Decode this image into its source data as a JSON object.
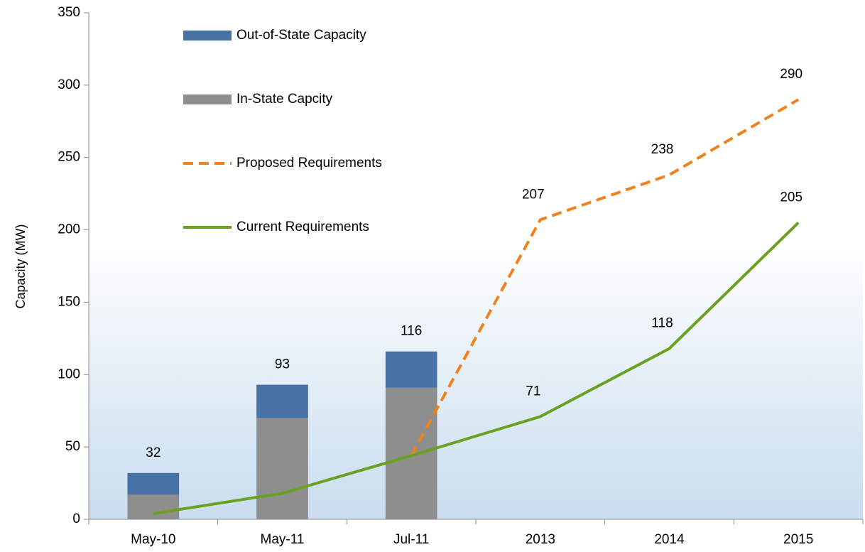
{
  "chart_data": {
    "type": "bar",
    "stacked": true,
    "ylabel": "Capacity (MW)",
    "categories": [
      "May-10",
      "May-11",
      "Jul-11",
      "2013",
      "2014",
      "2015"
    ],
    "series": [
      {
        "name": "Out-of-State Capacity",
        "type": "bar",
        "color": "#4672a5",
        "values": [
          15,
          23,
          25,
          null,
          null,
          null
        ]
      },
      {
        "name": "In-State Capcity",
        "type": "bar",
        "color": "#8e8e8e",
        "values": [
          17,
          70,
          91,
          null,
          null,
          null
        ]
      },
      {
        "name": "Proposed Requirements",
        "type": "line",
        "dashed": true,
        "color": "#f0821e",
        "values": [
          null,
          null,
          44,
          207,
          238,
          290
        ],
        "value_labels": [
          null,
          null,
          null,
          "207",
          "238",
          "290"
        ]
      },
      {
        "name": "Current Requirements",
        "type": "line",
        "dashed": false,
        "color": "#6aa121",
        "values": [
          4,
          18,
          44,
          71,
          118,
          205
        ],
        "value_labels": [
          null,
          null,
          null,
          "71",
          "118",
          "205"
        ]
      }
    ],
    "totals": [
      32,
      93,
      116
    ],
    "ylim": [
      0,
      350
    ],
    "yticks": [
      0,
      50,
      100,
      150,
      200,
      250,
      300,
      350
    ],
    "grid": false,
    "legend": "upper left"
  }
}
